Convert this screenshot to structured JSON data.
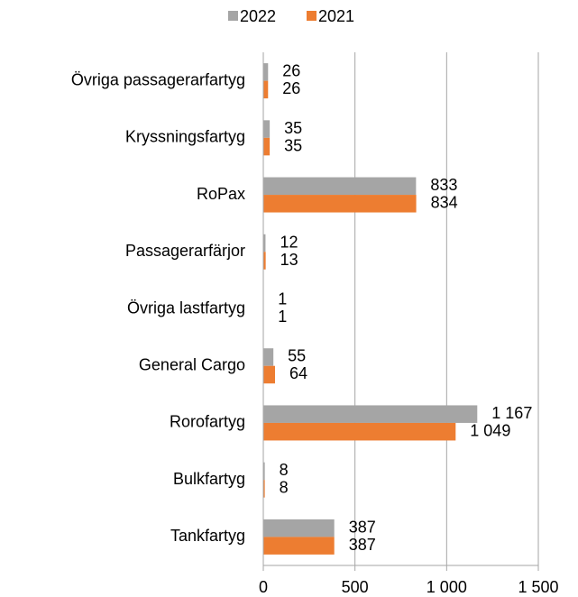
{
  "chart_data": {
    "type": "hbar",
    "categories": [
      "Övriga passagerarfartyg",
      "Kryssningsfartyg",
      "RoPax",
      "Passagerarfärjor",
      "Övriga lastfartyg",
      "General Cargo",
      "Rorofartyg",
      "Bulkfartyg",
      "Tankfartyg"
    ],
    "series": [
      {
        "name": "2022",
        "color": "#a5a5a5",
        "values": [
          26,
          35,
          833,
          12,
          1,
          55,
          1167,
          8,
          387
        ],
        "value_labels": [
          "26",
          "35",
          "833",
          "12",
          "1",
          "55",
          "1 167",
          "8",
          "387"
        ]
      },
      {
        "name": "2021",
        "color": "#ed7d31",
        "values": [
          26,
          35,
          834,
          13,
          1,
          64,
          1049,
          8,
          387
        ],
        "value_labels": [
          "26",
          "35",
          "834",
          "13",
          "1",
          "64",
          "1 049",
          "8",
          "387"
        ]
      }
    ],
    "xlim": [
      0,
      1500
    ],
    "xticks": [
      0,
      500,
      {
        "value": 1000,
        "label": "1 000"
      },
      {
        "value": 1500,
        "label": "1 500"
      }
    ],
    "grid": true,
    "legend": "top"
  }
}
